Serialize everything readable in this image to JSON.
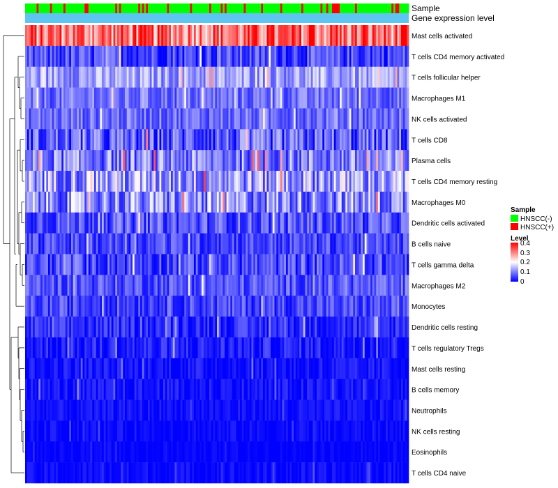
{
  "chart_data": {
    "type": "heatmap",
    "annotation_rows": [
      {
        "key": "sample",
        "label": "Sample"
      },
      {
        "key": "level",
        "label": "Gene expression level"
      }
    ],
    "rows": [
      {
        "name": "Mast cells activated",
        "mean": 0.3,
        "spread": 0.1
      },
      {
        "name": "T cells CD4 memory activated",
        "mean": 0.05,
        "spread": 0.06
      },
      {
        "name": "T cells follicular helper",
        "mean": 0.12,
        "spread": 0.06
      },
      {
        "name": "Macrophages M1",
        "mean": 0.08,
        "spread": 0.05
      },
      {
        "name": "NK cells activated",
        "mean": 0.08,
        "spread": 0.05
      },
      {
        "name": "T cells CD8",
        "mean": 0.06,
        "spread": 0.08
      },
      {
        "name": "Plasma cells",
        "mean": 0.09,
        "spread": 0.08
      },
      {
        "name": "T cells CD4 memory resting",
        "mean": 0.12,
        "spread": 0.1
      },
      {
        "name": "Macrophages M0",
        "mean": 0.1,
        "spread": 0.09
      },
      {
        "name": "Dendritic cells activated",
        "mean": 0.06,
        "spread": 0.06
      },
      {
        "name": "B cells naive",
        "mean": 0.05,
        "spread": 0.05
      },
      {
        "name": "T cells gamma delta",
        "mean": 0.05,
        "spread": 0.06
      },
      {
        "name": "Macrophages M2",
        "mean": 0.06,
        "spread": 0.05
      },
      {
        "name": "Monocytes",
        "mean": 0.05,
        "spread": 0.05
      },
      {
        "name": "Dendritic cells resting",
        "mean": 0.03,
        "spread": 0.04
      },
      {
        "name": "T cells regulatory  Tregs",
        "mean": 0.02,
        "spread": 0.04
      },
      {
        "name": "Mast cells resting",
        "mean": 0.01,
        "spread": 0.03
      },
      {
        "name": "B cells memory",
        "mean": 0.01,
        "spread": 0.03
      },
      {
        "name": "Neutrophils",
        "mean": 0.01,
        "spread": 0.02
      },
      {
        "name": "NK cells resting",
        "mean": 0.005,
        "spread": 0.02
      },
      {
        "name": "Eosinophils",
        "mean": 0.002,
        "spread": 0.01
      },
      {
        "name": "T cells CD4 naive",
        "mean": 0.005,
        "spread": 0.02
      }
    ],
    "n_samples": 200,
    "sample_groups": [
      "HNSCC(-)",
      "HNSCC(+)"
    ],
    "color_scale": {
      "min": 0,
      "max": 0.4,
      "low": "#0000ff",
      "mid": "#ffffff",
      "high": "#ff0000",
      "mid_value": 0.2
    }
  },
  "legend": {
    "sample": {
      "title": "Sample",
      "items": [
        {
          "label": "HNSCC(-)",
          "color": "#00ff00"
        },
        {
          "label": "HNSCC(+)",
          "color": "#ff0000"
        }
      ]
    },
    "level": {
      "title": "Level",
      "ticks": [
        "0.4",
        "0.3",
        "0.2",
        "0.1",
        "0"
      ],
      "annotation_color": "#5ec4f0"
    }
  }
}
